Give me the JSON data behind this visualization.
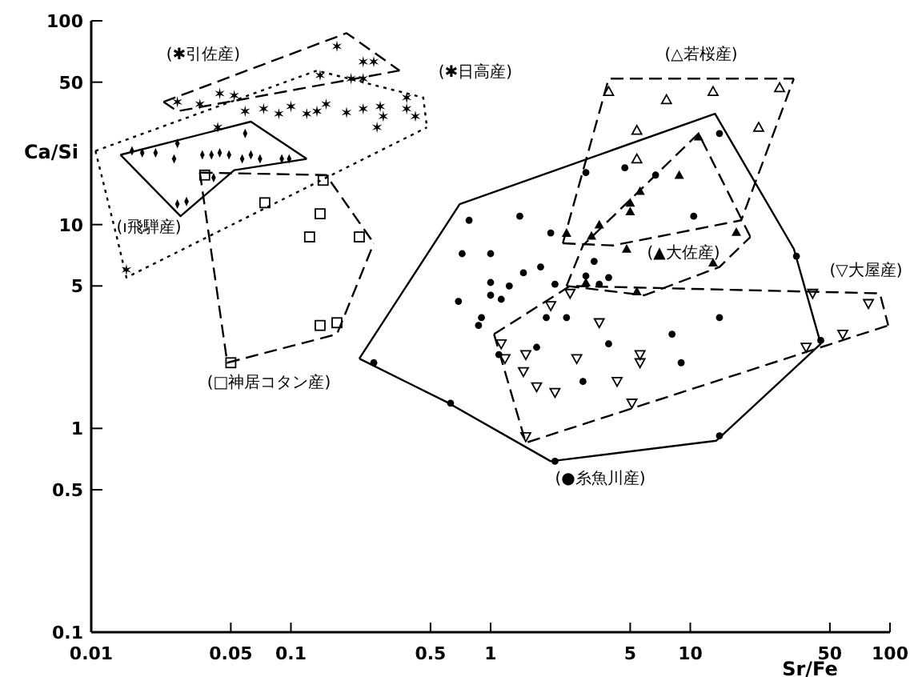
{
  "chart_data": {
    "type": "scatter",
    "xlabel": "Sr/Fe",
    "ylabel": "Ca/Si",
    "log": "xy",
    "xlim": [
      0.01,
      100
    ],
    "ylim": [
      0.1,
      100
    ],
    "xticks": [
      0.01,
      0.05,
      0.1,
      0.5,
      1,
      5,
      10,
      50,
      100
    ],
    "yticks": [
      0.1,
      0.5,
      1,
      5,
      10,
      50,
      100
    ],
    "series": [
      {
        "type": "scatter",
        "name": "(●糸魚川産)",
        "marker": "circle",
        "color": "#000000",
        "x": [
          0.72,
          1.0,
          1.46,
          1.78,
          1.0,
          1.24,
          0.69,
          1.0,
          1.13,
          0.9,
          0.87,
          2.1,
          3.0,
          3.5,
          3.9,
          3.3,
          1.9,
          2.4,
          1.7,
          1.1,
          3.9,
          2.9,
          8.1,
          9.0,
          14,
          34,
          45,
          14,
          2.1,
          0.63,
          0.26,
          3.0,
          4.7,
          6.7,
          14,
          10.4,
          2.0,
          1.4,
          0.78
        ],
        "values": [
          7.2,
          7.2,
          5.8,
          6.2,
          5.2,
          5.0,
          4.2,
          4.5,
          4.3,
          3.5,
          3.2,
          5.1,
          5.6,
          5.1,
          5.5,
          6.6,
          3.5,
          3.5,
          2.5,
          2.3,
          2.6,
          1.7,
          2.9,
          2.1,
          3.5,
          7.0,
          2.7,
          0.92,
          0.69,
          1.33,
          2.1,
          18,
          19,
          17.5,
          28,
          11,
          9.1,
          11,
          10.5
        ]
      },
      {
        "type": "line",
        "line_style": "solid",
        "color": "#000000",
        "x": [
          0.22,
          0.7,
          13.3,
          33,
          45
        ],
        "values": [
          2.2,
          12.6,
          35,
          7.6,
          2.6
        ]
      },
      {
        "type": "line",
        "line_style": "solid",
        "color": "#000000",
        "x": [
          0.22,
          0.6,
          2.0,
          13.5,
          45
        ],
        "values": [
          2.2,
          1.35,
          0.69,
          0.87,
          2.6
        ]
      },
      {
        "type": "scatter",
        "name": "(▽大屋産)",
        "marker": "triangle-down-open",
        "color": "#000000",
        "x": [
          2.5,
          2.0,
          3.5,
          1.13,
          1.18,
          1.5,
          1.46,
          1.7,
          2.1,
          2.7,
          4.3,
          5.6,
          5.6,
          5.1,
          1.5,
          38,
          58,
          78,
          41
        ],
        "values": [
          4.6,
          4.0,
          3.3,
          2.6,
          2.2,
          2.3,
          1.9,
          1.6,
          1.5,
          2.2,
          1.7,
          2.3,
          2.1,
          1.33,
          0.91,
          2.5,
          2.9,
          4.1,
          4.6
        ]
      },
      {
        "type": "line",
        "line_style": "dashed",
        "color": "#000000",
        "x": [
          1.04,
          2.5,
          89,
          98
        ],
        "values": [
          2.9,
          5.0,
          4.6,
          3.2
        ]
      },
      {
        "type": "line",
        "line_style": "dashed",
        "color": "#000000",
        "x": [
          1.04,
          1.5,
          98
        ],
        "values": [
          2.9,
          0.85,
          3.2
        ]
      },
      {
        "type": "scatter",
        "name": "(▲大佐産)",
        "marker": "triangle",
        "color": "#000000",
        "x": [
          11,
          8.8,
          5.6,
          5.0,
          5.0,
          3.5,
          3.2,
          17,
          4.8,
          13,
          5.4,
          3.0,
          2.4
        ],
        "values": [
          27,
          17.5,
          14.6,
          12.8,
          11.6,
          10,
          8.8,
          9.2,
          7.6,
          6.5,
          4.7,
          5.2,
          9.1
        ]
      },
      {
        "type": "line",
        "line_style": "dashed",
        "color": "#000000",
        "x": [
          2.4,
          2.9,
          11,
          20
        ],
        "values": [
          5.0,
          7.9,
          28,
          8.7
        ]
      },
      {
        "type": "line",
        "line_style": "dashed",
        "color": "#000000",
        "x": [
          2.4,
          5.9,
          14,
          20
        ],
        "values": [
          5.0,
          4.5,
          6.2,
          8.7
        ]
      },
      {
        "type": "scatter",
        "name": "(△若桜産)",
        "marker": "triangle-open",
        "color": "#000000",
        "x": [
          3.9,
          7.6,
          13,
          28,
          5.4,
          22,
          5.4
        ],
        "values": [
          45,
          41,
          45,
          47,
          29,
          30,
          21
        ]
      },
      {
        "type": "line",
        "line_style": "dashed",
        "color": "#000000",
        "x": [
          2.3,
          3.9,
          33
        ],
        "values": [
          8.1,
          52,
          52
        ]
      },
      {
        "type": "line",
        "line_style": "dashed",
        "color": "#000000",
        "x": [
          2.3,
          4.1,
          18,
          33
        ],
        "values": [
          8.1,
          7.9,
          10.5,
          52
        ]
      },
      {
        "type": "scatter",
        "name": "(□神居コタン産)",
        "marker": "square-open",
        "color": "#000000",
        "x": [
          0.037,
          0.145,
          0.074,
          0.14,
          0.124,
          0.22,
          0.14,
          0.17,
          0.05
        ],
        "values": [
          17.5,
          16.5,
          12.8,
          11.3,
          8.7,
          8.7,
          3.2,
          3.3,
          2.1
        ]
      },
      {
        "type": "line",
        "line_style": "dashed",
        "color": "#000000",
        "x": [
          0.035,
          0.15,
          0.26
        ],
        "values": [
          18,
          17.5,
          8.1
        ]
      },
      {
        "type": "line",
        "line_style": "dashed",
        "color": "#000000",
        "x": [
          0.035,
          0.048,
          0.17,
          0.26
        ],
        "values": [
          18,
          2.1,
          2.9,
          8.1
        ]
      },
      {
        "type": "scatter",
        "name": "(✱引佐産)",
        "marker": "cross",
        "color": "#000000",
        "x": [
          0.17,
          0.14,
          0.2,
          0.23,
          0.23,
          0.26,
          0.027,
          0.035,
          0.044,
          0.052
        ],
        "values": [
          75,
          54,
          52,
          52,
          63,
          63,
          40,
          39,
          44,
          43
        ]
      },
      {
        "type": "line",
        "line_style": "dashed",
        "color": "#000000",
        "x": [
          0.023,
          0.19,
          0.35
        ],
        "values": [
          40,
          87,
          57
        ]
      },
      {
        "type": "line",
        "line_style": "dashed",
        "color": "#000000",
        "x": [
          0.023,
          0.027,
          0.35
        ],
        "values": [
          40,
          36,
          57
        ]
      },
      {
        "type": "scatter",
        "name": "(✱日高産)",
        "marker": "cross",
        "color": "#000000",
        "x": [
          0.059,
          0.073,
          0.087,
          0.1,
          0.12,
          0.135,
          0.15,
          0.19,
          0.23,
          0.28,
          0.29,
          0.27,
          0.38,
          0.38,
          0.42,
          0.043,
          0.015
        ],
        "values": [
          36,
          37,
          35,
          38,
          35,
          36,
          39,
          35.5,
          37,
          38,
          34,
          30,
          42,
          37,
          34,
          30,
          6.0
        ]
      },
      {
        "type": "line",
        "line_style": "dotted",
        "color": "#000000",
        "x": [
          0.0105,
          0.135,
          0.46,
          0.48
        ],
        "values": [
          23,
          57,
          42,
          30
        ]
      },
      {
        "type": "line",
        "line_style": "dotted",
        "color": "#000000",
        "x": [
          0.0105,
          0.0135,
          0.015,
          0.48
        ],
        "values": [
          23,
          8.5,
          5.5,
          30
        ]
      },
      {
        "type": "scatter",
        "name": "(ı飛騨産)",
        "marker": "diamond",
        "color": "#000000",
        "x": [
          0.016,
          0.018,
          0.021,
          0.026,
          0.027,
          0.036,
          0.04,
          0.044,
          0.049,
          0.057,
          0.063,
          0.07,
          0.09,
          0.098,
          0.059,
          0.041,
          0.03,
          0.027
        ],
        "values": [
          23,
          22.5,
          22.5,
          21,
          25,
          22,
          22,
          22.5,
          22,
          21,
          22,
          21,
          21,
          21,
          28,
          17,
          13,
          12.6
        ]
      },
      {
        "type": "line",
        "line_style": "solid",
        "color": "#000000",
        "x": [
          0.014,
          0.063,
          0.12
        ],
        "values": [
          22,
          32,
          21
        ]
      },
      {
        "type": "line",
        "line_style": "solid",
        "color": "#000000",
        "x": [
          0.014,
          0.028,
          0.052,
          0.12
        ],
        "values": [
          22,
          11,
          18.5,
          21
        ]
      }
    ]
  }
}
